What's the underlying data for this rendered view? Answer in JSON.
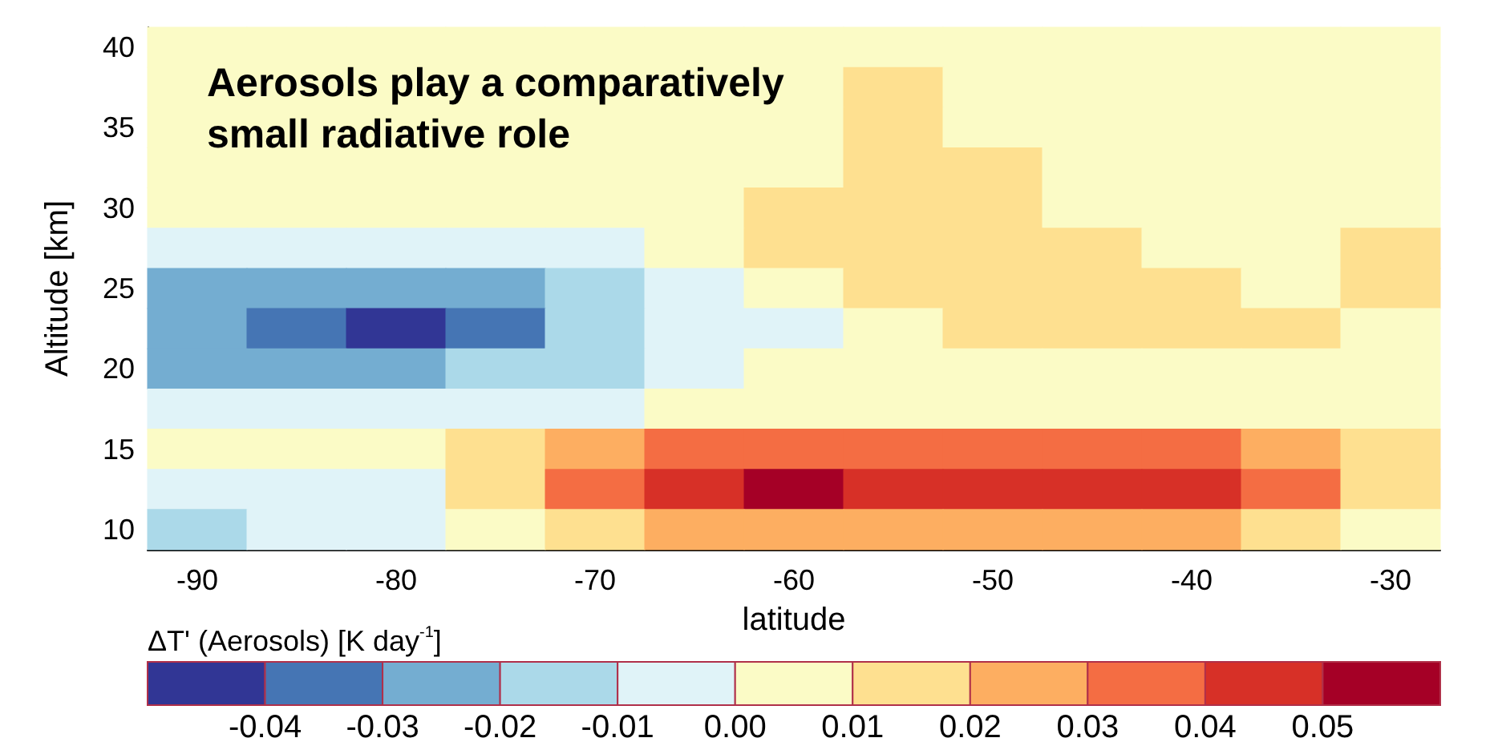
{
  "chart_data": {
    "type": "heatmap",
    "title": "Aerosols play a comparatively small radiative role",
    "xlabel": "latitude",
    "ylabel": "Altitude [km]",
    "clabel": "ΔT' (Aerosols) [K day$^{-1}$]",
    "categories": [
      "-90",
      null,
      "-80",
      null,
      "-70",
      null,
      "-60",
      null,
      "-50",
      null,
      "-40",
      null,
      "-30"
    ],
    "y_categories": [
      "40",
      null,
      "35",
      null,
      "30",
      null,
      "25",
      null,
      "20",
      null,
      "15",
      null,
      "10"
    ],
    "cells": [
      [
        0.005,
        0.005,
        0.005,
        0.005,
        0.005,
        0.005,
        0.005,
        0.005,
        0.005,
        0.005,
        0.005,
        0.005,
        0.005
      ],
      [
        0.005,
        0.005,
        0.005,
        0.005,
        0.005,
        0.005,
        0.005,
        0.015,
        0.005,
        0.005,
        0.005,
        0.005,
        0.005
      ],
      [
        0.005,
        0.005,
        0.005,
        0.005,
        0.005,
        0.005,
        0.005,
        0.015,
        0.005,
        0.005,
        0.005,
        0.005,
        0.005
      ],
      [
        0.005,
        0.005,
        0.005,
        0.005,
        0.005,
        0.005,
        0.005,
        0.015,
        0.015,
        0.005,
        0.005,
        0.005,
        0.005
      ],
      [
        0.005,
        0.005,
        0.005,
        0.005,
        0.005,
        0.005,
        0.015,
        0.015,
        0.015,
        0.005,
        0.005,
        0.005,
        0.005
      ],
      [
        -0.005,
        -0.005,
        -0.005,
        -0.005,
        -0.005,
        0.005,
        0.015,
        0.015,
        0.015,
        0.015,
        0.005,
        0.005,
        0.015
      ],
      [
        -0.025,
        -0.025,
        -0.025,
        -0.025,
        -0.015,
        -0.005,
        0.005,
        0.015,
        0.015,
        0.015,
        0.015,
        0.005,
        0.015
      ],
      [
        -0.025,
        -0.035,
        -0.045,
        -0.035,
        -0.015,
        -0.005,
        -0.005,
        0.005,
        0.015,
        0.015,
        0.015,
        0.015,
        0.005
      ],
      [
        -0.025,
        -0.025,
        -0.025,
        -0.015,
        -0.015,
        -0.005,
        0.005,
        0.005,
        0.005,
        0.005,
        0.005,
        0.005,
        0.005
      ],
      [
        -0.005,
        -0.005,
        -0.005,
        -0.005,
        -0.005,
        0.005,
        0.005,
        0.005,
        0.005,
        0.005,
        0.005,
        0.005,
        0.005
      ],
      [
        0.005,
        0.005,
        0.005,
        0.015,
        0.025,
        0.035,
        0.035,
        0.035,
        0.035,
        0.035,
        0.035,
        0.025,
        0.015
      ],
      [
        -0.005,
        -0.005,
        -0.005,
        0.015,
        0.035,
        0.045,
        0.055,
        0.045,
        0.045,
        0.045,
        0.045,
        0.035,
        0.015
      ],
      [
        -0.015,
        -0.005,
        -0.005,
        0.005,
        0.015,
        0.025,
        0.025,
        0.025,
        0.025,
        0.025,
        0.025,
        0.015,
        0.005
      ]
    ],
    "clim": [
      -0.05,
      0.06
    ],
    "cticks": [
      -0.04,
      -0.03,
      -0.02,
      -0.01,
      "0.00",
      0.01,
      0.02,
      0.03,
      0.04,
      0.05
    ],
    "colors": [
      "#313695",
      "#4575b4",
      "#74add1",
      "#abd9e9",
      "#e0f3f8",
      "#fbfbc6",
      "#fee090",
      "#fdae61",
      "#f46d43",
      "#d73027",
      "#a50026"
    ]
  }
}
